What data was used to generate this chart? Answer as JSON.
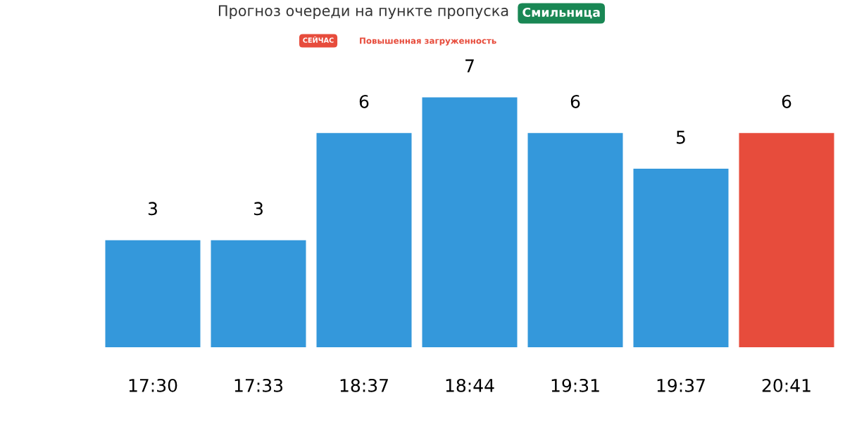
{
  "chart_data": {
    "type": "bar",
    "title": "Прогноз очереди на пункте пропуска",
    "categories": [
      "17:30",
      "17:33",
      "18:37",
      "18:44",
      "19:31",
      "19:37",
      "20:41"
    ],
    "values": [
      3,
      3,
      6,
      7,
      6,
      5,
      6
    ],
    "colors": [
      "#3498db",
      "#3498db",
      "#3498db",
      "#3498db",
      "#3498db",
      "#3498db",
      "#e74c3c"
    ],
    "data_labels": true,
    "grid": false,
    "legend": false,
    "tick_labels": "x",
    "annotations": [
      "Смильница",
      "СЕЙЧАС",
      "Повышенная загруженность"
    ]
  }
}
